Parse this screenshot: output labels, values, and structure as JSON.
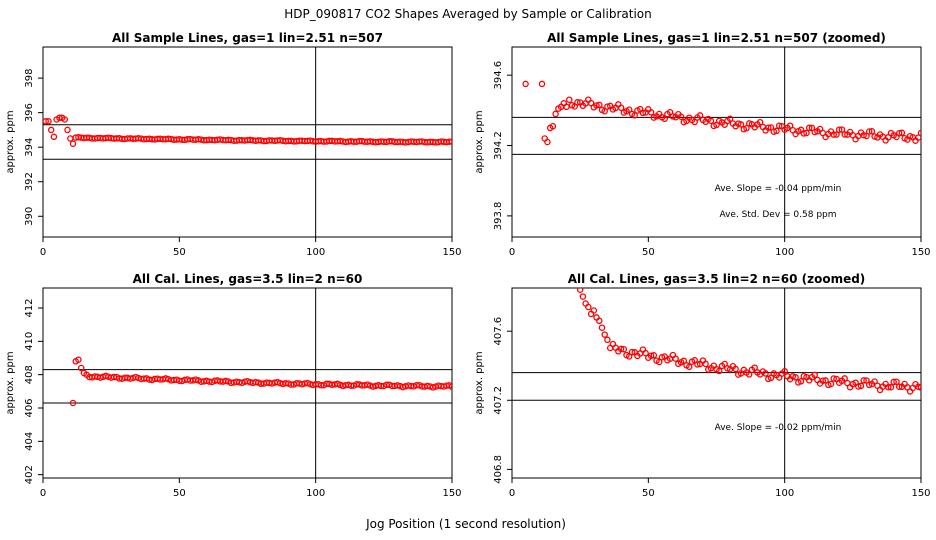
{
  "figure": {
    "title": "HDP_090817  CO2 Shapes Averaged by Sample or Calibration",
    "xlabel": "Jog Position (1 second resolution)"
  },
  "colors": {
    "points": "#ff0000",
    "axes": "#000000"
  },
  "chart_data": [
    {
      "type": "scatter",
      "title": "All Sample Lines, gas=1 lin=2.51 n=507",
      "ylabel": "approx. ppm",
      "xlim": [
        0,
        150
      ],
      "ylim": [
        388.8,
        399.8
      ],
      "x_ticks": [
        0,
        50,
        100,
        150
      ],
      "y_ticks": [
        390,
        392,
        394,
        396,
        398
      ],
      "vline": 100,
      "hlines": [
        395.3,
        393.3
      ],
      "points": {
        "x_start": 1,
        "x_end": 150,
        "head": [
          395.5,
          395.5,
          395.0,
          394.6,
          395.6,
          395.7,
          395.7,
          395.6,
          395.0,
          394.5,
          394.2
        ],
        "tail_start": 394.55,
        "tail_end": 394.3
      }
    },
    {
      "type": "scatter",
      "title": "All Sample Lines, gas=1 lin=2.51 n=507 (zoomed)",
      "ylabel": "approx. ppm",
      "xlim": [
        0,
        150
      ],
      "ylim": [
        393.68,
        394.76
      ],
      "x_ticks": [
        0,
        50,
        100,
        150
      ],
      "y_ticks": [
        393.8,
        394.2,
        394.6
      ],
      "vline": 100,
      "hlines": [
        394.36,
        394.15
      ],
      "annotations": [
        "Ave. Slope =  -0.04  ppm/min",
        "Ave. Std. Dev =  0.58  ppm"
      ],
      "points": {
        "x_start": 5,
        "x_end": 150,
        "head": [
          394.55,
          null,
          null,
          null,
          null,
          null,
          394.55,
          394.24,
          394.22,
          394.3,
          394.31,
          394.38,
          394.41,
          394.42,
          394.44,
          394.42
        ],
        "tail_start": 394.45,
        "tail_end": 394.25
      }
    },
    {
      "type": "scatter",
      "title": "All Cal. Lines, gas=3.5 lin=2 n=60",
      "ylabel": "approx. ppm",
      "xlim": [
        0,
        150
      ],
      "ylim": [
        401.8,
        413.2
      ],
      "x_ticks": [
        0,
        50,
        100,
        150
      ],
      "y_ticks": [
        402,
        404,
        406,
        408,
        410,
        412
      ],
      "vline": 100,
      "hlines": [
        408.3,
        406.3
      ],
      "points": {
        "x_start": 11,
        "x_end": 150,
        "head": [
          406.3,
          408.8,
          408.9,
          408.4,
          408.1,
          408.0
        ],
        "tail_start": 407.9,
        "tail_end": 407.3
      }
    },
    {
      "type": "scatter",
      "title": "All Cal. Lines, gas=3.5 lin=2 n=60 (zoomed)",
      "ylabel": "approx. ppm",
      "xlim": [
        0,
        150
      ],
      "ylim": [
        406.75,
        407.85
      ],
      "x_ticks": [
        0,
        50,
        100,
        150
      ],
      "y_ticks": [
        406.8,
        407.2,
        407.6
      ],
      "vline": 100,
      "hlines": [
        407.36,
        407.2
      ],
      "annotations": [
        "Ave. Slope =  -0.02  ppm/min"
      ],
      "points": {
        "x_start": 25,
        "x_end": 150,
        "head": [
          407.84,
          407.8,
          407.76,
          407.74,
          407.7,
          407.72,
          407.68,
          407.66,
          407.62,
          407.58,
          407.55
        ],
        "tail_start": 407.5,
        "tail_end": 407.28
      }
    }
  ]
}
